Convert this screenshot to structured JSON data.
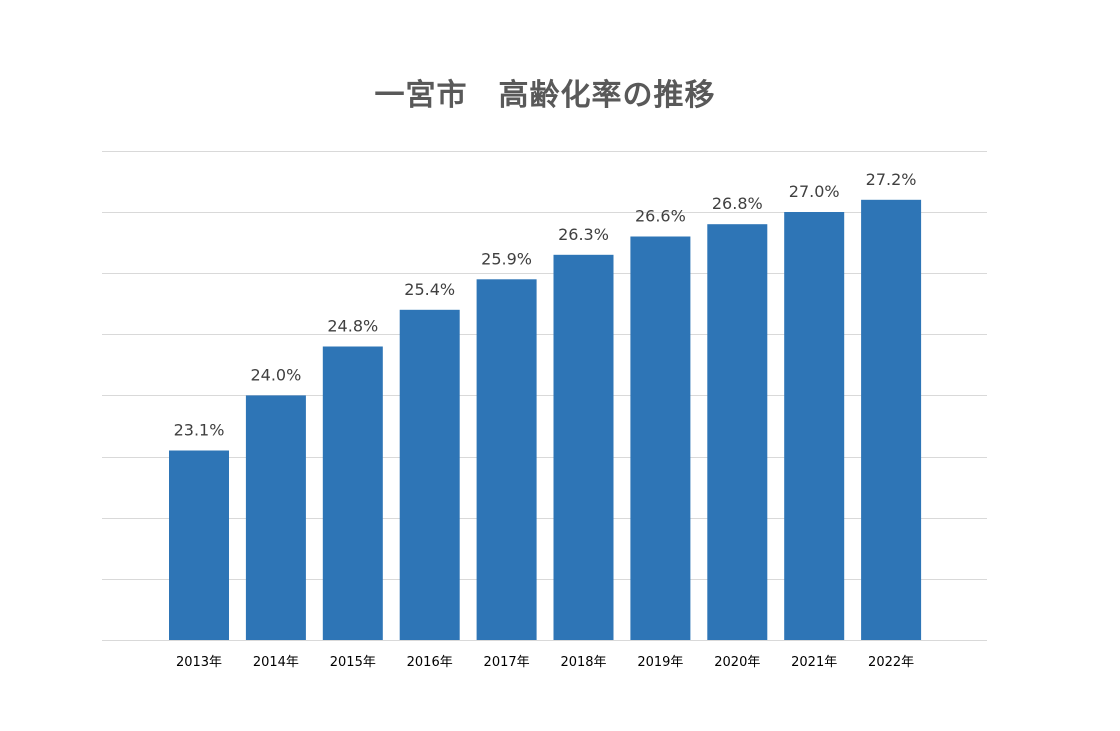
{
  "chart_data": {
    "type": "bar",
    "title": "一宮市　高齢化率の推移",
    "categories": [
      "2013年",
      "2014年",
      "2015年",
      "2016年",
      "2017年",
      "2018年",
      "2019年",
      "2020年",
      "2021年",
      "2022年"
    ],
    "values": [
      23.1,
      24.0,
      24.8,
      25.4,
      25.9,
      26.3,
      26.6,
      26.8,
      27.0,
      27.2
    ],
    "data_labels": [
      "23.1%",
      "24.0%",
      "24.8%",
      "25.4%",
      "25.9%",
      "26.3%",
      "26.6%",
      "26.8%",
      "27.0%",
      "27.2%"
    ],
    "xlabel": "",
    "ylabel": "",
    "ylim": [
      20.0,
      27.0
    ],
    "y_axis_labels_shown": false,
    "grid": true,
    "legend": "none",
    "colors": {
      "bar": "#2E75B6",
      "grid": "#D9D9D9",
      "title": "#595959",
      "label": "#404040"
    }
  }
}
